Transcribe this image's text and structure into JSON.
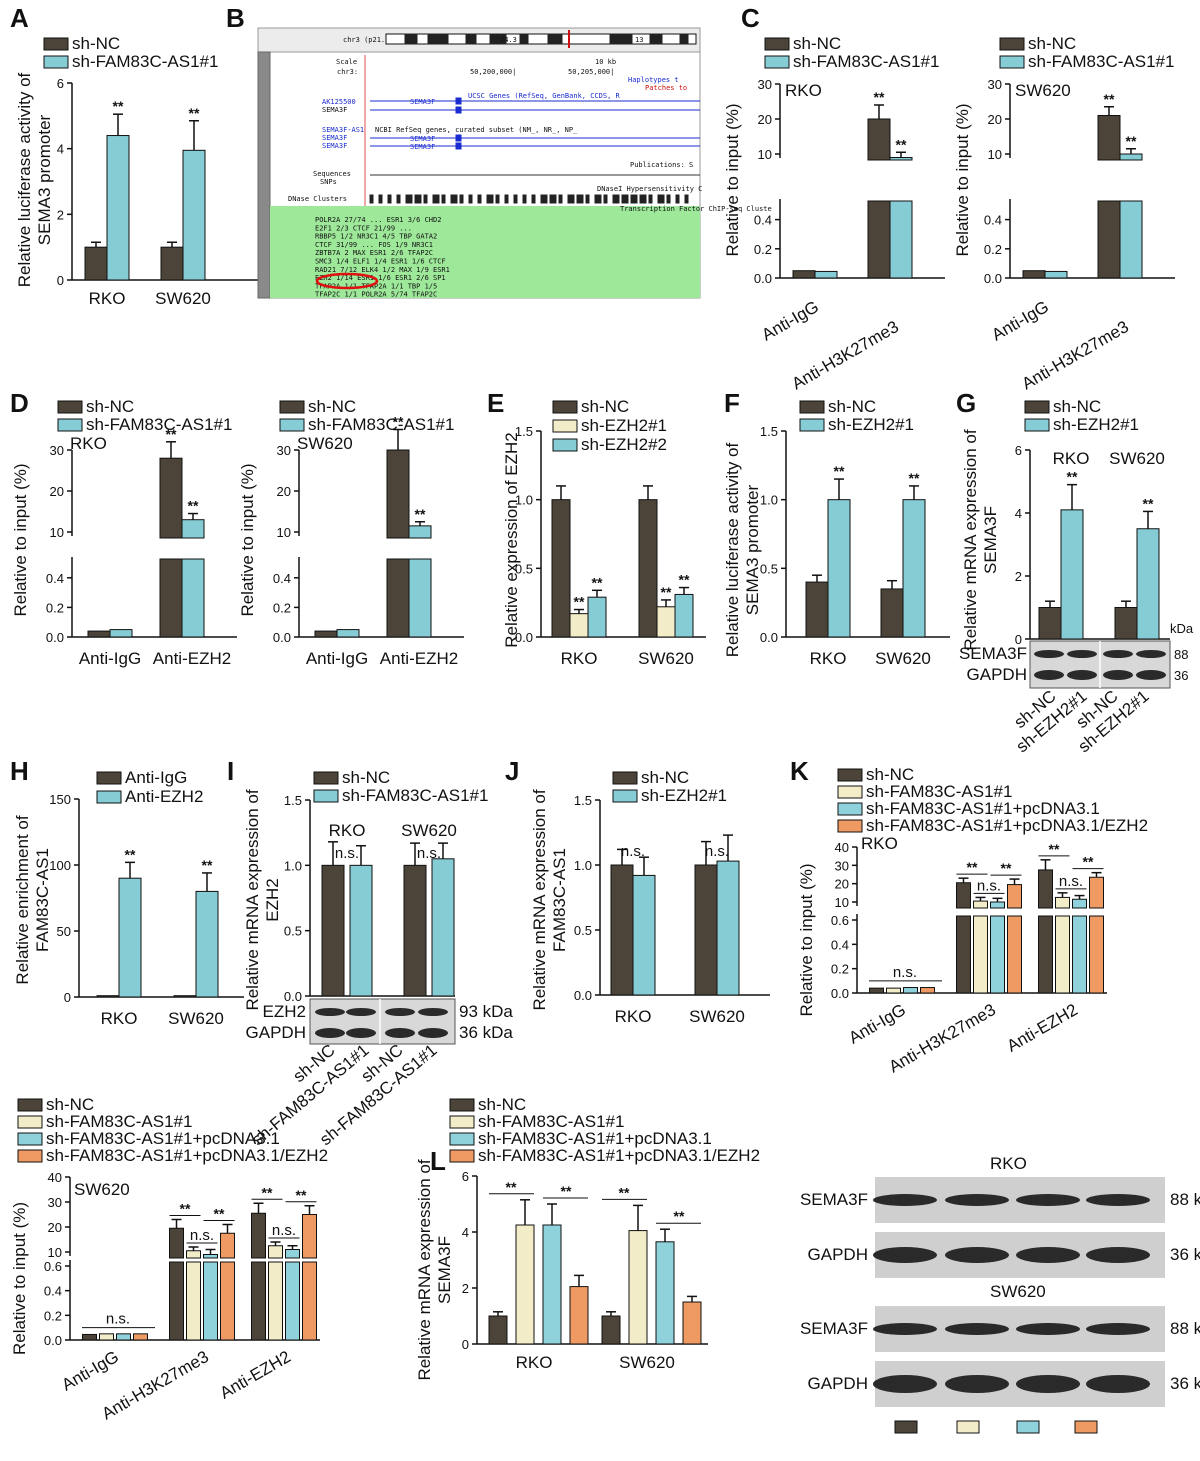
{
  "colors": {
    "nc": "#4c4438",
    "kd": "#86ccd4",
    "kd2": "#f3ecc8",
    "pc": "#8fd2dc",
    "ezh": "#ee9a62",
    "igg": "#4c4438",
    "green": "#9ee89a",
    "bandDark": "#2a2a2a"
  },
  "labels": {
    "A": "A",
    "B": "B",
    "C": "C",
    "D": "D",
    "E": "E",
    "F": "F",
    "G": "G",
    "H": "H",
    "I": "I",
    "J": "J",
    "K": "K",
    "L": "L"
  },
  "legends": {
    "ncfam": [
      "sh-NC",
      "sh-FAM83C-AS1#1"
    ],
    "ncezh": [
      "sh-NC",
      "sh-EZH2#1"
    ],
    "ezh3": [
      "sh-NC",
      "sh-EZH2#1",
      "sh-EZH2#2"
    ],
    "ige": [
      "Anti-IgG",
      "Anti-EZH2"
    ],
    "four": [
      "sh-NC",
      "sh-FAM83C-AS1#1",
      "sh-FAM83C-AS1#1+pcDNA3.1",
      "sh-FAM83C-AS1#1+pcDNA3.1/EZH2"
    ]
  },
  "stars": "**",
  "ns": "n.s.",
  "chart_data": [
    {
      "panel": "A",
      "type": "bar",
      "ylabel": "Relative luciferase activity of SEMA3 promoter",
      "categories": [
        "RKO",
        "SW620"
      ],
      "ylim": [
        0,
        6
      ],
      "yticks": [
        0,
        2,
        4,
        6
      ],
      "series": [
        {
          "name": "sh-NC",
          "values": [
            1.0,
            1.0
          ],
          "err": [
            0.15,
            0.15
          ]
        },
        {
          "name": "sh-FAM83C-AS1#1",
          "values": [
            4.4,
            3.95
          ],
          "err": [
            0.65,
            0.9
          ]
        }
      ]
    },
    {
      "panel": "C-RKO",
      "type": "bar",
      "ylabel": "Relative to input (%)",
      "cell": "RKO",
      "categories": [
        "Anti-IgG",
        "Anti-H3K27me3"
      ],
      "yticks_low": [
        "0.0",
        "0.2",
        "0.4"
      ],
      "yticks_high": [
        "10",
        "20",
        "30"
      ],
      "series": [
        {
          "name": "sh-NC",
          "values": [
            0.05,
            20
          ],
          "err": [
            0.005,
            4
          ]
        },
        {
          "name": "sh-FAM83C-AS1#1",
          "values": [
            0.045,
            9
          ],
          "err": [
            0.005,
            1.5
          ]
        }
      ]
    },
    {
      "panel": "C-SW620",
      "type": "bar",
      "ylabel": "Relative to input (%)",
      "cell": "SW620",
      "categories": [
        "Anti-IgG",
        "Anti-H3K27me3"
      ],
      "yticks_low": [
        "0.0",
        "0.2",
        "0.4"
      ],
      "yticks_high": [
        "10",
        "20",
        "30"
      ],
      "series": [
        {
          "name": "sh-NC",
          "values": [
            0.05,
            21
          ],
          "err": [
            0.005,
            2.5
          ]
        },
        {
          "name": "sh-FAM83C-AS1#1",
          "values": [
            0.045,
            10
          ],
          "err": [
            0.005,
            1.5
          ]
        }
      ]
    },
    {
      "panel": "D-RKO",
      "type": "bar",
      "ylabel": "Relative to input (%)",
      "cell": "RKO",
      "categories": [
        "Anti-IgG",
        "Anti-EZH2"
      ],
      "yticks_low": [
        "0.0",
        "0.2",
        "0.4"
      ],
      "yticks_high": [
        "10",
        "20",
        "30"
      ],
      "series": [
        {
          "name": "sh-NC",
          "values": [
            0.04,
            28
          ],
          "err": [
            0.01,
            4
          ]
        },
        {
          "name": "sh-FAM83C-AS1#1",
          "values": [
            0.05,
            13
          ],
          "err": [
            0.01,
            1.5
          ]
        }
      ]
    },
    {
      "panel": "D-SW620",
      "type": "bar",
      "ylabel": "Relative to input (%)",
      "cell": "SW620",
      "categories": [
        "Anti-IgG",
        "Anti-EZH2"
      ],
      "yticks_low": [
        "0.0",
        "0.2",
        "0.4"
      ],
      "yticks_high": [
        "10",
        "20",
        "30"
      ],
      "series": [
        {
          "name": "sh-NC",
          "values": [
            0.04,
            30
          ],
          "err": [
            0.01,
            5
          ]
        },
        {
          "name": "sh-FAM83C-AS1#1",
          "values": [
            0.05,
            11.5
          ],
          "err": [
            0.01,
            1
          ]
        }
      ]
    },
    {
      "panel": "E",
      "type": "bar",
      "ylabel": "Relative expression of EZH2",
      "categories": [
        "RKO",
        "SW620"
      ],
      "yticks": [
        "0.0",
        "0.5",
        "1.0",
        "1.5"
      ],
      "series": [
        {
          "name": "sh-NC",
          "values": [
            1.0,
            1.0
          ],
          "err": [
            0.1,
            0.1
          ]
        },
        {
          "name": "sh-EZH2#1",
          "values": [
            0.17,
            0.22
          ],
          "err": [
            0.03,
            0.05
          ]
        },
        {
          "name": "sh-EZH2#2",
          "values": [
            0.29,
            0.31
          ],
          "err": [
            0.05,
            0.05
          ]
        }
      ]
    },
    {
      "panel": "F",
      "type": "bar",
      "ylabel": "Relative luciferase activity of SEMA3 promoter",
      "categories": [
        "RKO",
        "SW620"
      ],
      "yticks": [
        "0.0",
        "0.5",
        "1.0",
        "1.5"
      ],
      "series": [
        {
          "name": "sh-NC",
          "values": [
            0.4,
            0.35
          ],
          "err": [
            0.05,
            0.06
          ]
        },
        {
          "name": "sh-EZH2#1",
          "values": [
            1.0,
            1.0
          ],
          "err": [
            0.15,
            0.1
          ]
        }
      ]
    },
    {
      "panel": "G",
      "type": "bar",
      "ylabel": "Relative mRNA expression of SEMA3F",
      "categories": [
        "RKO",
        "SW620"
      ],
      "yticks": [
        "0",
        "2",
        "4",
        "6"
      ],
      "series": [
        {
          "name": "sh-NC",
          "values": [
            1.0,
            1.0
          ],
          "err": [
            0.2,
            0.2
          ]
        },
        {
          "name": "sh-EZH2#1",
          "values": [
            4.1,
            3.5
          ],
          "err": [
            0.8,
            0.55
          ]
        }
      ],
      "blot": {
        "rows": [
          "SEMA3F",
          "GAPDH"
        ],
        "kda_head": "kDa",
        "kda": [
          "88",
          "36"
        ],
        "lanes": [
          "sh-NC",
          "sh-EZH2#1",
          "sh-NC",
          "sh-EZH2#1"
        ]
      }
    },
    {
      "panel": "H",
      "type": "bar",
      "ylabel": "Relative enrichment of FAM83C-AS1",
      "categories": [
        "RKO",
        "SW620"
      ],
      "yticks": [
        "0",
        "50",
        "100",
        "150"
      ],
      "series": [
        {
          "name": "Anti-IgG",
          "values": [
            1,
            1
          ],
          "err": [
            0,
            0
          ]
        },
        {
          "name": "Anti-EZH2",
          "values": [
            90,
            80
          ],
          "err": [
            12,
            14
          ]
        }
      ]
    },
    {
      "panel": "I",
      "type": "bar",
      "ylabel": "Relative mRNA expression of EZH2",
      "cells": [
        "RKO",
        "SW620"
      ],
      "yticks": [
        "0.0",
        "0.5",
        "1.0",
        "1.5"
      ],
      "series": [
        {
          "name": "sh-NC",
          "values": [
            1.0,
            1.0
          ],
          "err": [
            0.18,
            0.17
          ]
        },
        {
          "name": "sh-FAM83C-AS1#1",
          "values": [
            1.0,
            1.05
          ],
          "err": [
            0.15,
            0.12
          ]
        }
      ],
      "blot": {
        "rows": [
          "EZH2",
          "GAPDH"
        ],
        "kda": [
          "93 kDa",
          "36 kDa"
        ],
        "lanes": [
          "sh-NC",
          "sh-FAM83C-AS1#1",
          "sh-NC",
          "sh-FAM83C-AS1#1"
        ]
      }
    },
    {
      "panel": "J",
      "type": "bar",
      "ylabel": "Relative mRNA expression of FAM83C-AS1",
      "categories": [
        "RKO",
        "SW620"
      ],
      "yticks": [
        "0.0",
        "0.5",
        "1.0",
        "1.5"
      ],
      "series": [
        {
          "name": "sh-NC",
          "values": [
            1.0,
            1.0
          ],
          "err": [
            0.12,
            0.18
          ]
        },
        {
          "name": "sh-EZH2#1",
          "values": [
            0.92,
            1.03
          ],
          "err": [
            0.14,
            0.2
          ]
        }
      ]
    },
    {
      "panel": "K",
      "type": "bar",
      "ylabel": "Relative to input (%)",
      "cell": "RKO",
      "categories": [
        "Anti-IgG",
        "Anti-H3K27me3",
        "Anti-EZH2"
      ],
      "yticks_low": [
        "0.0",
        "0.2",
        "0.4",
        "0.6"
      ],
      "yticks_high": [
        "10",
        "20",
        "30",
        "40"
      ],
      "series": [
        {
          "name": "sh-NC",
          "values": [
            0.04,
            20.5,
            27.5
          ],
          "err": [
            0.005,
            2.5,
            5.5
          ]
        },
        {
          "name": "sh-FAM83C-AS1#1",
          "values": [
            0.04,
            10.5,
            12.5
          ],
          "err": [
            0.005,
            2,
            2.5
          ]
        },
        {
          "name": "sh-FAM83C-AS1#1+pcDNA3.1",
          "values": [
            0.045,
            10,
            11.5
          ],
          "err": [
            0.005,
            2,
            2
          ]
        },
        {
          "name": "sh-FAM83C-AS1#1+pcDNA3.1/EZH2",
          "values": [
            0.045,
            19.5,
            23.5
          ],
          "err": [
            0.005,
            3,
            2.5
          ]
        }
      ]
    },
    {
      "panel": "K-SW620",
      "type": "bar",
      "ylabel": "Relative to input (%)",
      "cell": "SW620",
      "categories": [
        "Anti-IgG",
        "Anti-H3K27me3",
        "Anti-EZH2"
      ],
      "yticks_low": [
        "0.0",
        "0.2",
        "0.4",
        "0.6"
      ],
      "yticks_high": [
        "10",
        "20",
        "30",
        "40"
      ],
      "series": [
        {
          "name": "sh-NC",
          "values": [
            0.045,
            19.5,
            25.5
          ],
          "err": [
            0.005,
            3.5,
            4
          ]
        },
        {
          "name": "sh-FAM83C-AS1#1",
          "values": [
            0.05,
            10.5,
            12.5
          ],
          "err": [
            0.005,
            1.5,
            1.5
          ]
        },
        {
          "name": "sh-FAM83C-AS1#1+pcDNA3.1",
          "values": [
            0.05,
            9,
            11
          ],
          "err": [
            0.005,
            2,
            1.5
          ]
        },
        {
          "name": "sh-FAM83C-AS1#1+pcDNA3.1/EZH2",
          "values": [
            0.05,
            17.5,
            25
          ],
          "err": [
            0.005,
            3.5,
            3.5
          ]
        }
      ]
    },
    {
      "panel": "L",
      "type": "bar",
      "ylabel": "Relative mRNA expression of SEMA3F",
      "categories": [
        "RKO",
        "SW620"
      ],
      "yticks": [
        "0",
        "2",
        "4",
        "6"
      ],
      "series": [
        {
          "name": "sh-NC",
          "values": [
            1.0,
            1.0
          ],
          "err": [
            0.15,
            0.15
          ]
        },
        {
          "name": "sh-FAM83C-AS1#1",
          "values": [
            4.25,
            4.05
          ],
          "err": [
            0.9,
            0.9
          ]
        },
        {
          "name": "sh-FAM83C-AS1#1+pcDNA3.1",
          "values": [
            4.25,
            3.65
          ],
          "err": [
            0.75,
            0.45
          ]
        },
        {
          "name": "sh-FAM83C-AS1#1+pcDNA3.1/EZH2",
          "values": [
            2.05,
            1.5
          ],
          "err": [
            0.4,
            0.2
          ]
        }
      ]
    }
  ],
  "westernL": {
    "groups": [
      "RKO",
      "SW620"
    ],
    "rows": [
      "SEMA3F",
      "GAPDH"
    ],
    "kda": [
      "88 kDa",
      "36 kDa"
    ]
  },
  "browser": {
    "chrom": "chr3 (p21.31)",
    "band": "13",
    "band2": "24.3",
    "scale": "Scale",
    "chr": "chr3:",
    "kb": "10 kb",
    "pos1": "50,200,000|",
    "pos2": "50,205,000|",
    "haplo": "Haplotypes t",
    "patches": "Patches to",
    "ucsc": "UCSC Genes (RefSeq, GenBank, CCDS, R",
    "ncbi": "NCBI RefSeq genes, curated subset (NM_, NR_, NP_",
    "genes": [
      "AK125500",
      "SEMA3F",
      "SEMA3F-AS1",
      "SEMA3F",
      "SEMA3F"
    ],
    "pubs": "Publications: S",
    "seq": "Sequences",
    "snps": "SNPs",
    "dnase": "DNase Clusters",
    "dnase2": "DNaseI Hypersensitivity C",
    "tfbs": "Transcription Factor ChIP-seq Cluste",
    "tf": [
      "POLR2A  27/74 ...  ESR1  3/6  CHD2",
      "E2F1  2/3  CTCF  21/99  ...",
      "RBBP5  1/2  NR3C1  4/5  TBP  GATA2",
      "CTCF  31/99  ...  FOS  1/9  NR3C1",
      "ZBTB7A  2  MAX  ESR1  2/6  TFAP2C",
      "SMC3  1/4  ELF1  1/4  ESR1  1/6  CTCF",
      "RAD21  7/12  ELK4  1/2  MAX  1/9  ESR1",
      "EZH2  1/14  ESR1  1/6  ESR1  2/6  SP1",
      "TFAP2A  1/1  TFAP2A  1/1  TBP  1/5",
      "TFAP2C  1/1  POLR2A  5/74  TFAP2C"
    ]
  }
}
